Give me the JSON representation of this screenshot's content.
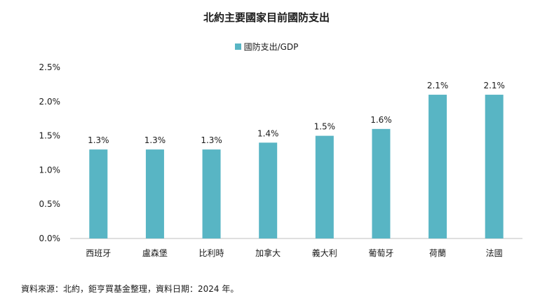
{
  "chart_data": {
    "type": "bar",
    "title": "北約主要國家目前國防支出",
    "categories": [
      "西班牙",
      "盧森堡",
      "比利時",
      "加拿大",
      "義大利",
      "葡萄牙",
      "荷蘭",
      "法國"
    ],
    "series": [
      {
        "name": "國防支出/GDP",
        "values": [
          1.3,
          1.3,
          1.3,
          1.4,
          1.5,
          1.6,
          2.1,
          2.1
        ],
        "labels": [
          "1.3%",
          "1.3%",
          "1.3%",
          "1.4%",
          "1.5%",
          "1.6%",
          "2.1%",
          "2.1%"
        ]
      }
    ],
    "ylim": [
      0,
      2.5
    ],
    "yticks": [
      0,
      0.5,
      1.0,
      1.5,
      2.0,
      2.5
    ],
    "ytick_labels": [
      "0.0%",
      "0.5%",
      "1.0%",
      "1.5%",
      "2.0%",
      "2.5%"
    ],
    "xlabel": "",
    "ylabel": "",
    "grid": false,
    "legend_position": "top-center",
    "bar_color": "#58b5c4"
  },
  "source": "資料來源：北約，鉅亨買基金整理，資料日期：2024 年。"
}
